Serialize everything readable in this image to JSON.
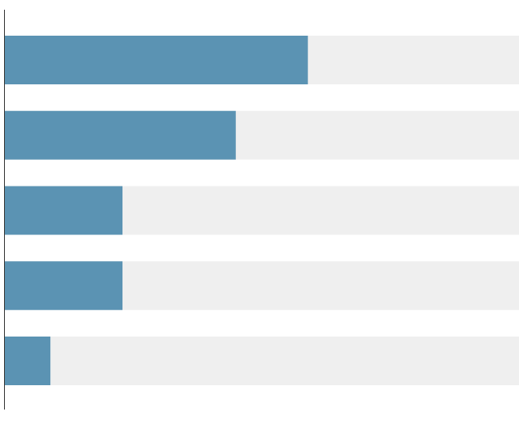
{
  "chart_data": {
    "type": "bar",
    "orientation": "horizontal",
    "categories": [
      null,
      null,
      null,
      null,
      null
    ],
    "values": [
      59,
      45,
      23,
      23,
      9
    ],
    "color": "#5b93b3",
    "track_color": "#efefef",
    "xlim": [
      0,
      100
    ]
  }
}
